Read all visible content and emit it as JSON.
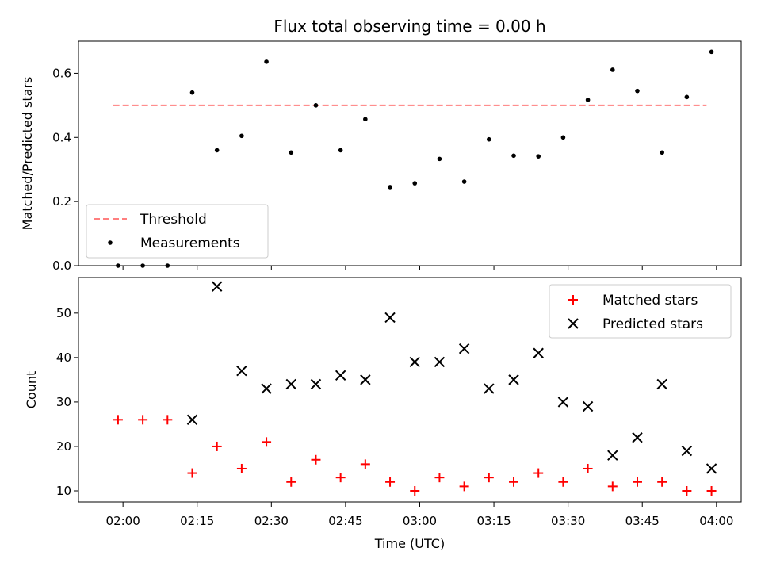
{
  "title": "Flux total observing time = 0.00 h",
  "xlabel": "Time (UTC)",
  "x_tick_labels": [
    "02:00",
    "02:15",
    "02:30",
    "02:45",
    "03:00",
    "03:15",
    "03:30",
    "03:45",
    "04:00"
  ],
  "colors": {
    "threshold": "#ff7f7f",
    "measurement": "#000000",
    "matched": "#ff0000",
    "predicted": "#000000"
  },
  "chart_data": [
    {
      "type": "scatter",
      "ylabel": "Matched/Predicted stars",
      "xlim": [
        "01:51",
        "04:05"
      ],
      "ylim": [
        0,
        0.7
      ],
      "yticks": [
        0.0,
        0.2,
        0.4,
        0.6
      ],
      "ytick_labels": [
        "0.0",
        "0.2",
        "0.4",
        "0.6"
      ],
      "legend": {
        "position": "lower-left",
        "entries": [
          "Threshold",
          "Measurements"
        ]
      },
      "threshold": {
        "name": "Threshold",
        "value": 0.5,
        "x_start": "01:58",
        "x_end": "03:58"
      },
      "series": [
        {
          "name": "Measurements",
          "x": [
            "01:59",
            "02:04",
            "02:09",
            "02:14",
            "02:19",
            "02:24",
            "02:29",
            "02:34",
            "02:39",
            "02:44",
            "02:49",
            "02:54",
            "02:59",
            "03:04",
            "03:09",
            "03:14",
            "03:19",
            "03:24",
            "03:29",
            "03:34",
            "03:39",
            "03:44",
            "03:49",
            "03:54",
            "03:59"
          ],
          "y": [
            0.0,
            0.0,
            0.0,
            0.54,
            0.36,
            0.405,
            0.636,
            0.353,
            0.5,
            0.36,
            0.457,
            0.245,
            0.257,
            0.333,
            0.262,
            0.394,
            0.343,
            0.341,
            0.4,
            0.517,
            0.611,
            0.545,
            0.353,
            0.526,
            0.667
          ]
        }
      ]
    },
    {
      "type": "scatter",
      "ylabel": "Count",
      "xlim": [
        "01:51",
        "04:05"
      ],
      "ylim": [
        7.5,
        58
      ],
      "yticks": [
        10,
        20,
        30,
        40,
        50
      ],
      "ytick_labels": [
        "10",
        "20",
        "30",
        "40",
        "50"
      ],
      "legend": {
        "position": "top-right",
        "entries": [
          "Matched stars",
          "Predicted stars"
        ]
      },
      "series": [
        {
          "name": "Matched stars",
          "marker": "+",
          "x": [
            "01:59",
            "02:04",
            "02:09",
            "02:14",
            "02:19",
            "02:24",
            "02:29",
            "02:34",
            "02:39",
            "02:44",
            "02:49",
            "02:54",
            "02:59",
            "03:04",
            "03:09",
            "03:14",
            "03:19",
            "03:24",
            "03:29",
            "03:34",
            "03:39",
            "03:44",
            "03:49",
            "03:54",
            "03:59"
          ],
          "y": [
            26,
            26,
            26,
            14,
            20,
            15,
            21,
            12,
            17,
            13,
            16,
            12,
            10,
            13,
            11,
            13,
            12,
            14,
            12,
            15,
            11,
            12,
            12,
            10,
            10
          ]
        },
        {
          "name": "Predicted stars",
          "marker": "x",
          "x": [
            "02:14",
            "02:19",
            "02:24",
            "02:29",
            "02:34",
            "02:39",
            "02:44",
            "02:49",
            "02:54",
            "02:59",
            "03:04",
            "03:09",
            "03:14",
            "03:19",
            "03:24",
            "03:29",
            "03:34",
            "03:39",
            "03:44",
            "03:49",
            "03:54",
            "03:59"
          ],
          "y": [
            26,
            56,
            37,
            33,
            34,
            34,
            36,
            35,
            49,
            39,
            39,
            42,
            33,
            35,
            41,
            30,
            29,
            18,
            22,
            34,
            19,
            15
          ]
        }
      ]
    }
  ]
}
